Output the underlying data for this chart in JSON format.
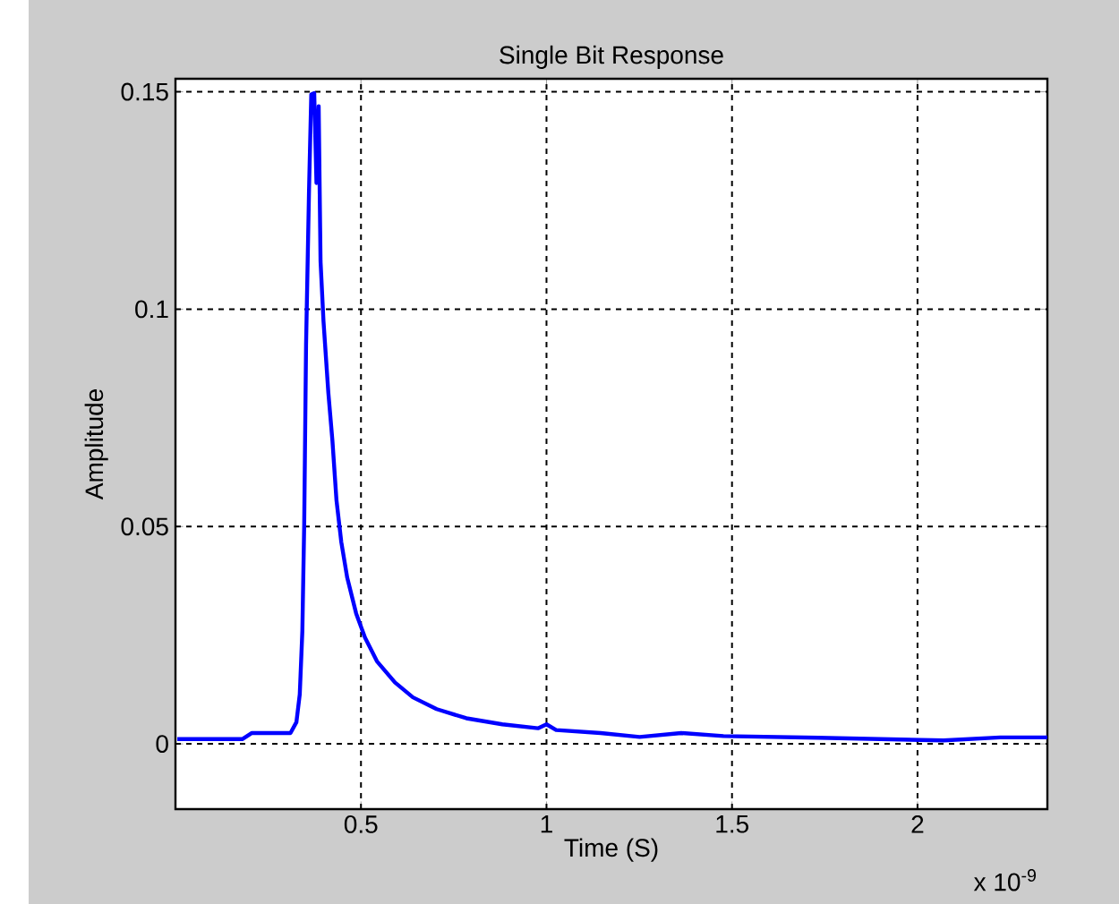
{
  "chart_data": {
    "type": "line",
    "title": "Single Bit Response",
    "xlabel": "Time (S)",
    "ylabel": "Amplitude",
    "x": [
      0.005,
      0.18,
      0.206,
      0.31,
      0.326,
      0.335,
      0.342,
      0.347,
      0.352,
      0.36,
      0.366,
      0.374,
      0.38,
      0.386,
      0.391,
      0.399,
      0.412,
      0.423,
      0.434,
      0.447,
      0.463,
      0.487,
      0.511,
      0.543,
      0.592,
      0.64,
      0.704,
      0.784,
      0.881,
      0.977,
      1.0,
      1.026,
      1.146,
      1.251,
      1.363,
      1.477,
      1.733,
      2.07,
      2.223,
      2.35
    ],
    "series": [
      {
        "color": "#0000ff",
        "values": [
          0.0011,
          0.0011,
          0.0025,
          0.0025,
          0.005,
          0.0114,
          0.026,
          0.0506,
          0.0918,
          0.1275,
          0.1494,
          0.1497,
          0.129,
          0.1467,
          0.111,
          0.0972,
          0.0808,
          0.0698,
          0.056,
          0.0464,
          0.0382,
          0.03,
          0.0244,
          0.019,
          0.0141,
          0.0107,
          0.008,
          0.0059,
          0.0045,
          0.0036,
          0.0045,
          0.0032,
          0.0025,
          0.0016,
          0.0025,
          0.0018,
          0.0014,
          0.0008,
          0.0015,
          0.0015
        ]
      }
    ],
    "xlim": [
      0,
      2.35
    ],
    "ylim": [
      -0.015,
      0.153
    ],
    "xticks": [
      0.5,
      1,
      1.5,
      2
    ],
    "yticks": [
      0,
      0.05,
      0.1,
      0.15
    ],
    "grid": true,
    "line_style": "solid",
    "marker": "none",
    "annotations": [
      "x 10$^{-9}$"
    ]
  }
}
